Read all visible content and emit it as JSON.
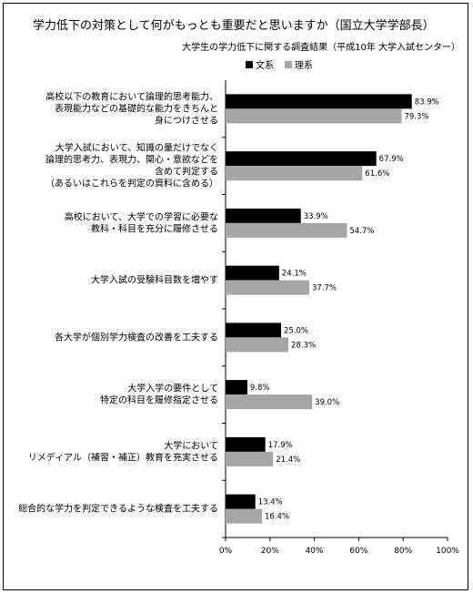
{
  "chart_data": {
    "type": "bar",
    "orientation": "horizontal",
    "title": "学力低下の対策として何がもっとも重要だと思いますか（国立大学学部長）",
    "subtitle": "大学生の学力低下に関する調査結果（平成10年 大学入試センター）",
    "categories": [
      [
        "高校以下の教育において論理的思考能力、",
        "表現能力などの基礎的な能力をきちんと",
        "身につけさせる"
      ],
      [
        "大学入試において、知識の量だけでなく",
        "論理的思考力、表現力、関心・意欲などを",
        "含めて判定する",
        "（あるいはこれらを判定の資料に含める）"
      ],
      [
        "高校において、大学での学習に必要な",
        "教科・科目を充分に履修させる"
      ],
      [
        "大学入試の受験科目数を増やす"
      ],
      [
        "各大学が個別学力検査の改善を工夫する"
      ],
      [
        "大学入学の要件として",
        "特定の科目を履修指定させる"
      ],
      [
        "大学において",
        "リメディアル（補習・補正）教育を充実させる"
      ],
      [
        "総合的な学力を判定できるような検査を工夫する"
      ]
    ],
    "series": [
      {
        "name": "文系",
        "color": "#000000",
        "values": [
          83.9,
          67.9,
          33.9,
          24.1,
          25.0,
          9.8,
          17.9,
          13.4
        ],
        "labels": [
          "83.9%",
          "67.9%",
          "33.9%",
          "24.1%",
          "25.0%",
          "9.8%",
          "17.9%",
          "13.4%"
        ]
      },
      {
        "name": "理系",
        "color": "#a6a6a6",
        "values": [
          79.3,
          61.6,
          54.7,
          37.7,
          28.3,
          39.0,
          21.4,
          16.4
        ],
        "labels": [
          "79.3%",
          "61.6%",
          "54.7%",
          "37.7%",
          "28.3%",
          "39.0%",
          "21.4%",
          "16.4%"
        ]
      }
    ],
    "xlim": [
      0,
      100
    ],
    "xticks": [
      "0%",
      "20%",
      "40%",
      "60%",
      "80%",
      "100%"
    ],
    "legend_position": "top",
    "grid": false
  }
}
